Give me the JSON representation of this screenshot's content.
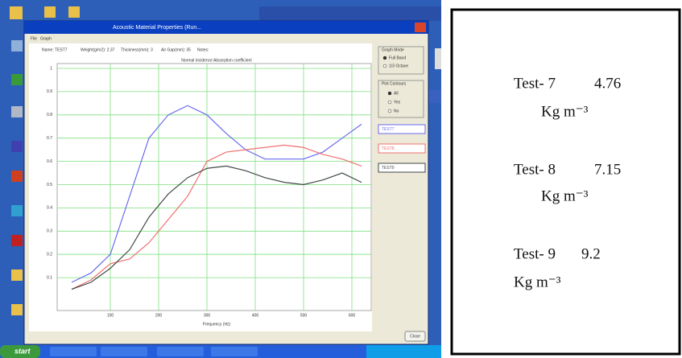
{
  "window": {
    "title": "Acoustic Material Properties (Run...",
    "menu": [
      "File",
      "Graph"
    ],
    "fields": [
      "Name: TEST7",
      "Weight(g/m2): 2.37",
      "Thickness(mm): 3",
      "Air Gap(mm): 35",
      "Notes:"
    ],
    "graph_mode": {
      "label": "Graph Mode",
      "options": [
        "Full Band",
        "1/3 Octave"
      ]
    },
    "plot_contours": {
      "label": "Plot Contours",
      "options": [
        "All",
        "Yes",
        "No"
      ]
    },
    "legend": [
      "TEST7",
      "TEST8",
      "TEST9"
    ],
    "close": "Close",
    "chart": {
      "type": "line",
      "title": "Normal incidence Absorption coefficient",
      "x_label": "Frequency (Hz)",
      "x": [
        20,
        60,
        100,
        140,
        180,
        220,
        260,
        300,
        340,
        380,
        420,
        460,
        500,
        540,
        580,
        620
      ],
      "series": [
        {
          "name": "TEST7",
          "color": "#6a6af0",
          "values": [
            0.08,
            0.12,
            0.2,
            0.45,
            0.7,
            0.8,
            0.84,
            0.8,
            0.72,
            0.65,
            0.61,
            0.61,
            0.61,
            0.64,
            0.7,
            0.76
          ]
        },
        {
          "name": "TEST8",
          "color": "#f07070",
          "values": [
            0.05,
            0.09,
            0.16,
            0.18,
            0.25,
            0.35,
            0.45,
            0.6,
            0.64,
            0.65,
            0.66,
            0.67,
            0.66,
            0.63,
            0.61,
            0.58
          ]
        },
        {
          "name": "TEST9",
          "color": "#404848",
          "values": [
            0.05,
            0.08,
            0.14,
            0.22,
            0.36,
            0.46,
            0.53,
            0.57,
            0.58,
            0.56,
            0.53,
            0.51,
            0.5,
            0.52,
            0.55,
            0.51
          ]
        }
      ],
      "xlim": [
        0,
        640
      ],
      "xticks": [
        100,
        200,
        300,
        400,
        500,
        600
      ],
      "ylim": [
        0,
        1
      ],
      "yticks": [
        0.1,
        0.2,
        0.3,
        0.4,
        0.5,
        0.6,
        0.7,
        0.8,
        0.9,
        1
      ],
      "grid": true
    }
  },
  "taskbar": {
    "start": "start"
  },
  "notes": [
    {
      "test": "Test- 7",
      "value": "4.76",
      "unit": "Kg m⁻³"
    },
    {
      "test": "Test- 8",
      "value": "7.15",
      "unit": "Kg m⁻³"
    },
    {
      "test": "Test- 9",
      "value": "9.2",
      "unit": "Kg m⁻³"
    }
  ]
}
